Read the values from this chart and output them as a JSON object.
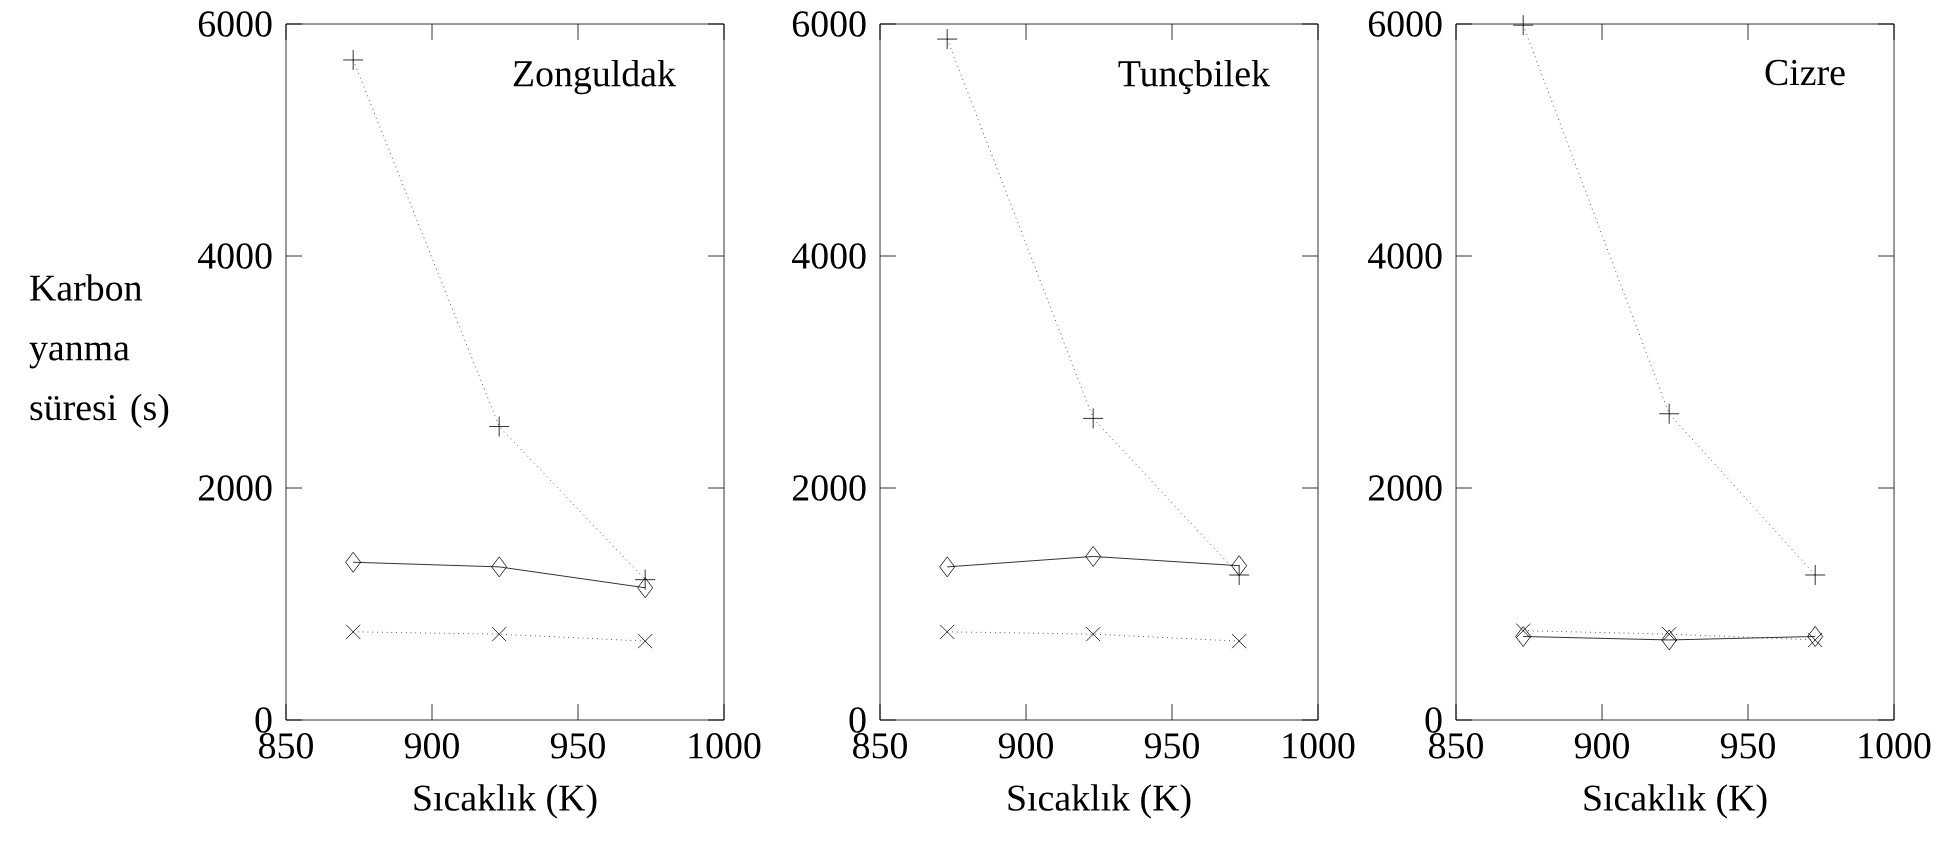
{
  "chart_data": [
    {
      "type": "line",
      "title": "Zonguldak",
      "xlabel": "Sıcaklık (K)",
      "ylabel": "Karbon yanma süresi (s)",
      "xlim": [
        850,
        1000
      ],
      "xticks": [
        850,
        900,
        950,
        1000
      ],
      "ylim": [
        0,
        6000
      ],
      "yticks": [
        0,
        2000,
        4000,
        6000
      ],
      "x": [
        873,
        923,
        973
      ],
      "series": [
        {
          "color": "#000000",
          "marker": "plus",
          "line_style": "dotted",
          "values": [
            5690,
            2530,
            1210
          ]
        },
        {
          "color": "#000000",
          "marker": "diamond",
          "line_style": "solid",
          "values": [
            1360,
            1320,
            1140
          ]
        },
        {
          "color": "#000000",
          "marker": "cross",
          "line_style": "dotted",
          "values": [
            760,
            740,
            680
          ]
        }
      ]
    },
    {
      "type": "line",
      "title": "Tunçbilek",
      "xlabel": "Sıcaklık (K)",
      "xlim": [
        850,
        1000
      ],
      "xticks": [
        850,
        900,
        950,
        1000
      ],
      "ylim": [
        0,
        6000
      ],
      "yticks": [
        0,
        2000,
        4000,
        6000
      ],
      "x": [
        873,
        923,
        973
      ],
      "series": [
        {
          "color": "#000000",
          "marker": "plus",
          "line_style": "dotted",
          "values": [
            5870,
            2600,
            1250
          ]
        },
        {
          "color": "#000000",
          "marker": "diamond",
          "line_style": "solid",
          "values": [
            1320,
            1410,
            1330
          ]
        },
        {
          "color": "#000000",
          "marker": "cross",
          "line_style": "dotted",
          "values": [
            760,
            740,
            680
          ]
        }
      ]
    },
    {
      "type": "line",
      "title": "Cizre",
      "xlabel": "Sıcaklık (K)",
      "xlim": [
        850,
        1000
      ],
      "xticks": [
        850,
        900,
        950,
        1000
      ],
      "ylim": [
        0,
        6000
      ],
      "yticks": [
        0,
        2000,
        4000,
        6000
      ],
      "x": [
        873,
        923,
        973
      ],
      "series": [
        {
          "color": "#000000",
          "marker": "plus",
          "line_style": "dotted",
          "values": [
            5990,
            2640,
            1250
          ]
        },
        {
          "color": "#000000",
          "marker": "diamond",
          "line_style": "solid",
          "values": [
            720,
            690,
            720
          ]
        },
        {
          "color": "#000000",
          "marker": "cross",
          "line_style": "dotted",
          "values": [
            770,
            740,
            690
          ]
        }
      ]
    }
  ]
}
